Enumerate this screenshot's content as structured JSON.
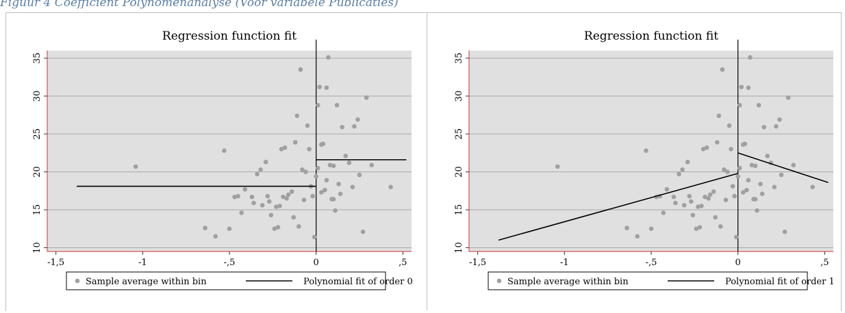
{
  "caption": "Figuur 4 Coëfficiënt Polynomenanalyse (Voor variabele Publicaties)",
  "chart_data": [
    {
      "type": "scatter",
      "title": "Regression function fit",
      "xlim": [
        -1.55,
        0.55
      ],
      "ylim": [
        9.5,
        36
      ],
      "xticks": [
        -1.5,
        -1,
        -0.5,
        0,
        0.5
      ],
      "xtick_labels": [
        "-1,5",
        "-1",
        "-,5",
        "0",
        ",5"
      ],
      "yticks": [
        10,
        15,
        20,
        25,
        30,
        35
      ],
      "ytick_labels": [
        "10",
        "15",
        "20",
        "25",
        "30",
        "35"
      ],
      "grid": "horizontal",
      "cutoff": 0,
      "legend_position": "bottom",
      "colors": {
        "plot_bg": "#e0e0e0",
        "points": "#a0a0a0",
        "fit": "#000000",
        "axis": "#cc3333"
      },
      "series": [
        {
          "name": "Sample average within bin",
          "kind": "points",
          "x": [
            -1.04,
            -0.64,
            -0.58,
            -0.53,
            -0.5,
            -0.47,
            -0.45,
            -0.43,
            -0.41,
            -0.37,
            -0.36,
            -0.34,
            -0.32,
            -0.31,
            -0.29,
            -0.28,
            -0.27,
            -0.26,
            -0.24,
            -0.23,
            -0.22,
            -0.21,
            -0.2,
            -0.19,
            -0.18,
            -0.17,
            -0.16,
            -0.14,
            -0.13,
            -0.12,
            -0.11,
            -0.1,
            -0.09,
            -0.08,
            -0.07,
            -0.06,
            -0.05,
            -0.04,
            -0.03,
            -0.02,
            -0.01,
            0.0,
            0.01,
            0.01,
            0.02,
            0.03,
            0.03,
            0.04,
            0.05,
            0.06,
            0.06,
            0.07,
            0.08,
            0.09,
            0.1,
            0.1,
            0.11,
            0.12,
            0.13,
            0.14,
            0.15,
            0.17,
            0.19,
            0.21,
            0.22,
            0.24,
            0.25,
            0.27,
            0.29,
            0.32,
            0.43
          ],
          "y": [
            20.7,
            12.6,
            11.5,
            22.8,
            12.5,
            16.7,
            16.8,
            14.6,
            17.7,
            16.7,
            15.9,
            19.7,
            20.3,
            15.6,
            21.3,
            16.8,
            16.1,
            14.3,
            12.5,
            15.4,
            12.7,
            15.5,
            23.0,
            16.7,
            23.2,
            16.5,
            17.0,
            17.4,
            14.0,
            23.9,
            27.4,
            12.8,
            33.5,
            20.3,
            16.3,
            20.0,
            26.1,
            23.0,
            18.1,
            16.8,
            11.4,
            19.4,
            20.5,
            28.8,
            31.2,
            23.6,
            17.3,
            23.7,
            17.6,
            31.1,
            18.9,
            35.1,
            20.9,
            16.4,
            16.4,
            20.8,
            14.9,
            28.8,
            18.4,
            17.1,
            25.9,
            22.1,
            21.2,
            18.0,
            26.0,
            26.9,
            19.6,
            12.1,
            29.8,
            20.9,
            18.0
          ]
        },
        {
          "name": "Polynomial fit of order 0",
          "kind": "fit",
          "segments": [
            {
              "x": [
                -1.38,
                0.0
              ],
              "y": [
                18.1,
                18.1
              ]
            },
            {
              "x": [
                0.0,
                0.52
              ],
              "y": [
                21.6,
                21.6
              ]
            }
          ]
        }
      ]
    },
    {
      "type": "scatter",
      "title": "Regression function fit",
      "xlim": [
        -1.55,
        0.55
      ],
      "ylim": [
        9.5,
        36
      ],
      "xticks": [
        -1.5,
        -1,
        -0.5,
        0,
        0.5
      ],
      "xtick_labels": [
        "-1,5",
        "-1",
        "-,5",
        "0",
        ",5"
      ],
      "yticks": [
        10,
        15,
        20,
        25,
        30,
        35
      ],
      "ytick_labels": [
        "10",
        "15",
        "20",
        "25",
        "30",
        "35"
      ],
      "grid": "horizontal",
      "cutoff": 0,
      "legend_position": "bottom",
      "colors": {
        "plot_bg": "#e0e0e0",
        "points": "#a0a0a0",
        "fit": "#000000",
        "axis": "#cc3333"
      },
      "series": [
        {
          "name": "Sample average within bin",
          "kind": "points",
          "x": [
            -1.04,
            -0.64,
            -0.58,
            -0.53,
            -0.5,
            -0.47,
            -0.45,
            -0.43,
            -0.41,
            -0.37,
            -0.36,
            -0.34,
            -0.32,
            -0.31,
            -0.29,
            -0.28,
            -0.27,
            -0.26,
            -0.24,
            -0.23,
            -0.22,
            -0.21,
            -0.2,
            -0.19,
            -0.18,
            -0.17,
            -0.16,
            -0.14,
            -0.13,
            -0.12,
            -0.11,
            -0.1,
            -0.09,
            -0.08,
            -0.07,
            -0.06,
            -0.05,
            -0.04,
            -0.03,
            -0.02,
            -0.01,
            0.0,
            0.01,
            0.01,
            0.02,
            0.03,
            0.03,
            0.04,
            0.05,
            0.06,
            0.06,
            0.07,
            0.08,
            0.09,
            0.1,
            0.1,
            0.11,
            0.12,
            0.13,
            0.14,
            0.15,
            0.17,
            0.19,
            0.21,
            0.22,
            0.24,
            0.25,
            0.27,
            0.29,
            0.32,
            0.43
          ],
          "y": [
            20.7,
            12.6,
            11.5,
            22.8,
            12.5,
            16.7,
            16.8,
            14.6,
            17.7,
            16.7,
            15.9,
            19.7,
            20.3,
            15.6,
            21.3,
            16.8,
            16.1,
            14.3,
            12.5,
            15.4,
            12.7,
            15.5,
            23.0,
            16.7,
            23.2,
            16.5,
            17.0,
            17.4,
            14.0,
            23.9,
            27.4,
            12.8,
            33.5,
            20.3,
            16.3,
            20.0,
            26.1,
            23.0,
            18.1,
            16.8,
            11.4,
            19.4,
            20.5,
            28.8,
            31.2,
            23.6,
            17.3,
            23.7,
            17.6,
            31.1,
            18.9,
            35.1,
            20.9,
            16.4,
            16.4,
            20.8,
            14.9,
            28.8,
            18.4,
            17.1,
            25.9,
            22.1,
            21.2,
            18.0,
            26.0,
            26.9,
            19.6,
            12.1,
            29.8,
            20.9,
            18.0
          ]
        },
        {
          "name": "Polynomial fit of order 1",
          "kind": "fit",
          "segments": [
            {
              "x": [
                -1.38,
                0.0
              ],
              "y": [
                11.0,
                19.8
              ]
            },
            {
              "x": [
                0.0,
                0.52
              ],
              "y": [
                22.5,
                18.6
              ]
            }
          ]
        }
      ]
    }
  ]
}
